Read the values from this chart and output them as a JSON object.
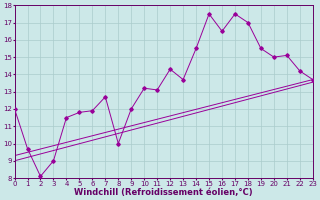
{
  "xlabel": "Windchill (Refroidissement éolien,°C)",
  "bg_color": "#cce8e8",
  "line_color": "#990099",
  "grid_color": "#aacccc",
  "xlim": [
    0,
    23
  ],
  "ylim": [
    8,
    18
  ],
  "xticks": [
    0,
    1,
    2,
    3,
    4,
    5,
    6,
    7,
    8,
    9,
    10,
    11,
    12,
    13,
    14,
    15,
    16,
    17,
    18,
    19,
    20,
    21,
    22,
    23
  ],
  "yticks": [
    8,
    9,
    10,
    11,
    12,
    13,
    14,
    15,
    16,
    17,
    18
  ],
  "line1_x": [
    0,
    1,
    2,
    3,
    4,
    5,
    6,
    7,
    8,
    9,
    10,
    11,
    12,
    13,
    14,
    15,
    16,
    17,
    18,
    19,
    20,
    21,
    22,
    23
  ],
  "line1_y": [
    12,
    9.7,
    8.1,
    9.0,
    11.5,
    11.8,
    11.9,
    12.7,
    10.0,
    12.0,
    13.2,
    13.1,
    14.3,
    13.7,
    15.5,
    17.5,
    16.5,
    17.5,
    17.0,
    15.5,
    15.0,
    15.1,
    14.2,
    13.7
  ],
  "line2_y": [
    9.0,
    13.55
  ],
  "line3_y": [
    9.3,
    13.7
  ],
  "tick_fontsize": 5.0,
  "xlabel_fontsize": 6.0
}
